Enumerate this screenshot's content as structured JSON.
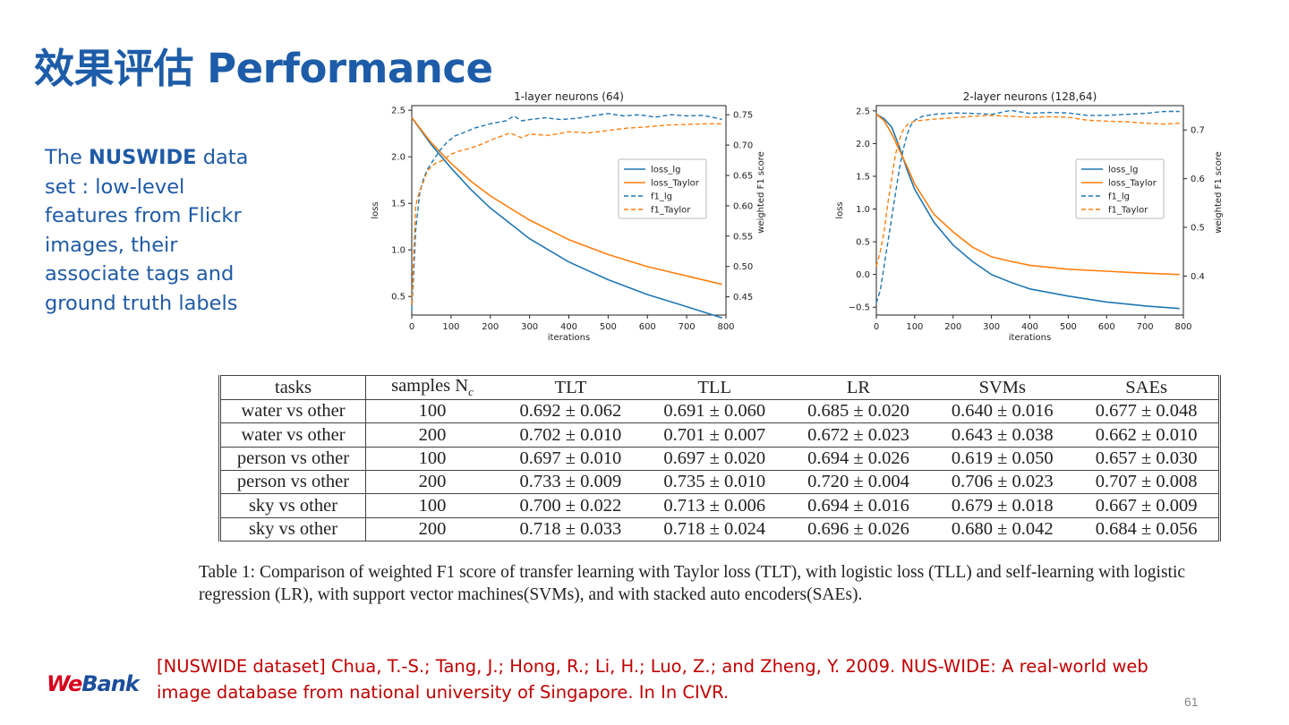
{
  "title": "效果评估 Performance",
  "description": {
    "prefix": "The ",
    "bold": "NUSWIDE",
    "suffix": " data set : low-level features from Flickr images, their associate tags and ground truth labels"
  },
  "chart_data": [
    {
      "type": "line",
      "title": "1-layer neurons (64)",
      "xlabel": "iterations",
      "ylabel": "loss",
      "y2label": "weighted F1 score",
      "xlim": [
        0,
        800
      ],
      "ylim": [
        0.3,
        2.55
      ],
      "y2lim": [
        0.42,
        0.765
      ],
      "xticks": [
        0,
        100,
        200,
        300,
        400,
        500,
        600,
        700,
        800
      ],
      "yticks": [
        0.5,
        1.0,
        1.5,
        2.0,
        2.5
      ],
      "y2ticks": [
        0.45,
        0.5,
        0.55,
        0.6,
        0.65,
        0.7,
        0.75
      ],
      "legend": [
        "loss_lg",
        "loss_Taylor",
        "f1_lg",
        "f1_Taylor"
      ],
      "legend_position": "right",
      "series": [
        {
          "name": "loss_lg",
          "axis": "left",
          "style": "solid",
          "color": "#1f77b4",
          "x": [
            0,
            50,
            100,
            150,
            200,
            300,
            400,
            500,
            600,
            700,
            790
          ],
          "y": [
            2.42,
            2.13,
            1.88,
            1.65,
            1.45,
            1.12,
            0.87,
            0.68,
            0.52,
            0.39,
            0.27
          ]
        },
        {
          "name": "loss_Taylor",
          "axis": "left",
          "style": "solid",
          "color": "#ff7f0e",
          "x": [
            0,
            50,
            100,
            150,
            200,
            300,
            400,
            500,
            600,
            700,
            790
          ],
          "y": [
            2.42,
            2.15,
            1.93,
            1.74,
            1.58,
            1.32,
            1.11,
            0.95,
            0.82,
            0.72,
            0.63
          ]
        },
        {
          "name": "f1_lg",
          "axis": "right",
          "style": "dashed",
          "color": "#1f77b4",
          "x": [
            0,
            5,
            10,
            20,
            30,
            40,
            55,
            70,
            90,
            110,
            130,
            160,
            200,
            240,
            260,
            280,
            300,
            340,
            380,
            420,
            460,
            500,
            540,
            580,
            620,
            660,
            700,
            740,
            780,
            790
          ],
          "y": [
            0.427,
            0.49,
            0.56,
            0.62,
            0.645,
            0.66,
            0.675,
            0.69,
            0.705,
            0.715,
            0.72,
            0.728,
            0.735,
            0.74,
            0.748,
            0.74,
            0.742,
            0.745,
            0.742,
            0.744,
            0.748,
            0.752,
            0.748,
            0.75,
            0.746,
            0.75,
            0.748,
            0.749,
            0.744,
            0.742
          ]
        },
        {
          "name": "f1_Taylor",
          "axis": "right",
          "style": "dashed",
          "color": "#ff7f0e",
          "x": [
            0,
            5,
            10,
            20,
            30,
            40,
            60,
            80,
            100,
            120,
            150,
            180,
            200,
            250,
            280,
            300,
            350,
            400,
            450,
            500,
            550,
            600,
            650,
            700,
            750,
            790
          ],
          "y": [
            0.438,
            0.52,
            0.6,
            0.625,
            0.64,
            0.658,
            0.67,
            0.675,
            0.685,
            0.69,
            0.695,
            0.702,
            0.708,
            0.72,
            0.712,
            0.718,
            0.716,
            0.722,
            0.72,
            0.724,
            0.728,
            0.73,
            0.733,
            0.734,
            0.735,
            0.735
          ]
        }
      ]
    },
    {
      "type": "line",
      "title": "2-layer neurons (128,64)",
      "xlabel": "iterations",
      "ylabel": "loss",
      "y2label": "weighted F1 score",
      "xlim": [
        0,
        800
      ],
      "ylim": [
        -0.62,
        2.58
      ],
      "y2lim": [
        0.32,
        0.75
      ],
      "xticks": [
        0,
        100,
        200,
        300,
        400,
        500,
        600,
        700,
        800
      ],
      "yticks": [
        -0.5,
        0.0,
        0.5,
        1.0,
        1.5,
        2.0,
        2.5
      ],
      "y2ticks": [
        0.4,
        0.5,
        0.6,
        0.7
      ],
      "legend": [
        "loss_lg",
        "loss_Taylor",
        "f1_lg",
        "f1_Taylor"
      ],
      "legend_position": "right",
      "series": [
        {
          "name": "loss_lg",
          "axis": "left",
          "style": "solid",
          "color": "#1f77b4",
          "x": [
            0,
            20,
            40,
            60,
            80,
            100,
            150,
            200,
            250,
            300,
            350,
            400,
            500,
            600,
            700,
            790
          ],
          "y": [
            2.45,
            2.38,
            2.25,
            1.95,
            1.6,
            1.3,
            0.8,
            0.45,
            0.2,
            0.0,
            -0.12,
            -0.22,
            -0.33,
            -0.42,
            -0.48,
            -0.52
          ]
        },
        {
          "name": "loss_Taylor",
          "axis": "left",
          "style": "solid",
          "color": "#ff7f0e",
          "x": [
            0,
            20,
            40,
            60,
            80,
            100,
            150,
            200,
            250,
            300,
            350,
            400,
            500,
            600,
            700,
            790
          ],
          "y": [
            2.45,
            2.35,
            2.15,
            1.9,
            1.65,
            1.38,
            0.92,
            0.65,
            0.42,
            0.27,
            0.2,
            0.14,
            0.08,
            0.05,
            0.02,
            0.0
          ]
        },
        {
          "name": "f1_lg",
          "axis": "right",
          "style": "dashed",
          "color": "#1f77b4",
          "x": [
            0,
            10,
            20,
            30,
            40,
            50,
            60,
            70,
            80,
            90,
            100,
            120,
            150,
            200,
            250,
            300,
            350,
            400,
            450,
            500,
            550,
            600,
            650,
            700,
            750,
            790
          ],
          "y": [
            0.345,
            0.37,
            0.42,
            0.47,
            0.52,
            0.57,
            0.62,
            0.66,
            0.69,
            0.71,
            0.72,
            0.728,
            0.732,
            0.735,
            0.734,
            0.732,
            0.74,
            0.734,
            0.736,
            0.735,
            0.73,
            0.73,
            0.732,
            0.734,
            0.738,
            0.738
          ]
        },
        {
          "name": "f1_Taylor",
          "axis": "right",
          "style": "dashed",
          "color": "#ff7f0e",
          "x": [
            0,
            10,
            20,
            30,
            40,
            50,
            60,
            70,
            80,
            90,
            100,
            120,
            150,
            200,
            250,
            300,
            350,
            400,
            450,
            500,
            550,
            600,
            650,
            700,
            750,
            790
          ],
          "y": [
            0.42,
            0.45,
            0.49,
            0.55,
            0.6,
            0.65,
            0.68,
            0.7,
            0.71,
            0.715,
            0.718,
            0.72,
            0.722,
            0.725,
            0.728,
            0.73,
            0.728,
            0.726,
            0.727,
            0.726,
            0.72,
            0.718,
            0.717,
            0.714,
            0.712,
            0.714
          ]
        }
      ]
    }
  ],
  "table": {
    "headers": [
      "tasks",
      "samples N",
      "TLT",
      "TLL",
      "LR",
      "SVMs",
      "SAEs"
    ],
    "samples_subscript": "c",
    "rows": [
      [
        "water vs other",
        "100",
        "0.692 ± 0.062",
        "0.691 ± 0.060",
        "0.685 ± 0.020",
        "0.640 ± 0.016",
        "0.677 ± 0.048"
      ],
      [
        "water vs other",
        "200",
        "0.702 ± 0.010",
        "0.701 ± 0.007",
        "0.672 ± 0.023",
        "0.643 ± 0.038",
        "0.662 ± 0.010"
      ],
      [
        "person vs other",
        "100",
        "0.697 ± 0.010",
        "0.697 ± 0.020",
        "0.694 ± 0.026",
        "0.619 ± 0.050",
        "0.657 ± 0.030"
      ],
      [
        "person vs other",
        "200",
        "0.733 ± 0.009",
        "0.735 ± 0.010",
        "0.720 ± 0.004",
        "0.706 ± 0.023",
        "0.707 ± 0.008"
      ],
      [
        "sky vs other",
        "100",
        "0.700 ± 0.022",
        "0.713 ± 0.006",
        "0.694 ± 0.016",
        "0.679 ± 0.018",
        "0.667 ± 0.009"
      ],
      [
        "sky vs other",
        "200",
        "0.718 ± 0.033",
        "0.718 ± 0.024",
        "0.696 ± 0.026",
        "0.680 ± 0.042",
        "0.684 ± 0.056"
      ]
    ]
  },
  "caption": "Table 1: Comparison of weighted F1 score of transfer learning with Taylor loss (TLT), with logistic loss (TLL) and self-learning with logistic regression (LR), with support vector machines(SVMs), and with stacked auto encoders(SAEs).",
  "reference": "[NUSWIDE dataset] Chua, T.-S.; Tang, J.; Hong, R.; Li, H.; Luo, Z.; and Zheng, Y. 2009. NUS-WIDE: A real-world web image database from national university of Singapore. In In CIVR.",
  "logo": {
    "part1": "We",
    "part2": "Bank"
  },
  "page_number": "61"
}
